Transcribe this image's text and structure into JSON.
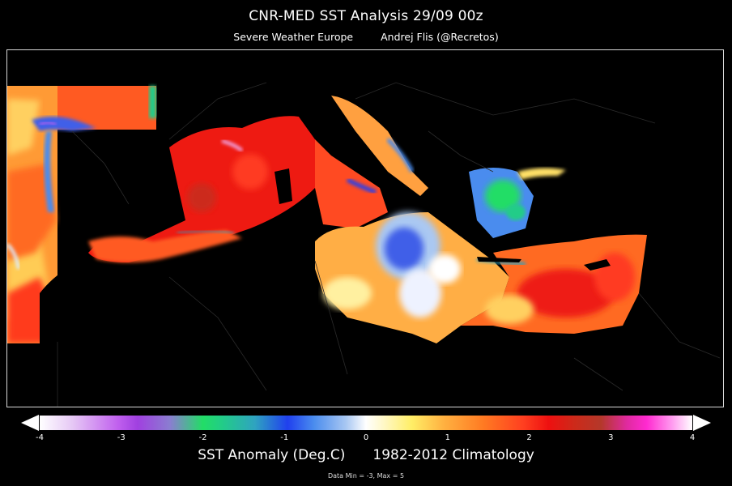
{
  "header": {
    "title": "CNR-MED SST Analysis  29/09 00z",
    "source": "Severe Weather Europe",
    "author": "Andrej Flis  (@Recretos)"
  },
  "map": {
    "region": "Mediterranean Sea",
    "background_color": "#000000",
    "land_color": "#000000",
    "border_color": "#2a2a2a",
    "frame_color": "#d8d8d8"
  },
  "colorbar": {
    "min": -4,
    "max": 4,
    "ticks": [
      "-4",
      "-3",
      "-2",
      "-1",
      "0",
      "1",
      "2",
      "3",
      "4"
    ],
    "extend": "both",
    "colors": {
      "cold_extreme": "#c060ee",
      "cold_mid": "#22dd66",
      "cold_low": "#2040ee",
      "neutral": "#ffffff",
      "warm_low": "#ffee66",
      "warm_mid": "#ff7a22",
      "warm_high": "#ee1010",
      "warm_extreme": "#ff2ad0"
    }
  },
  "legend": {
    "variable": "SST Anomaly (Deg.C)",
    "climatology": "1982-2012 Climatology"
  },
  "footnote": "Data Min = -3, Max = 5"
}
